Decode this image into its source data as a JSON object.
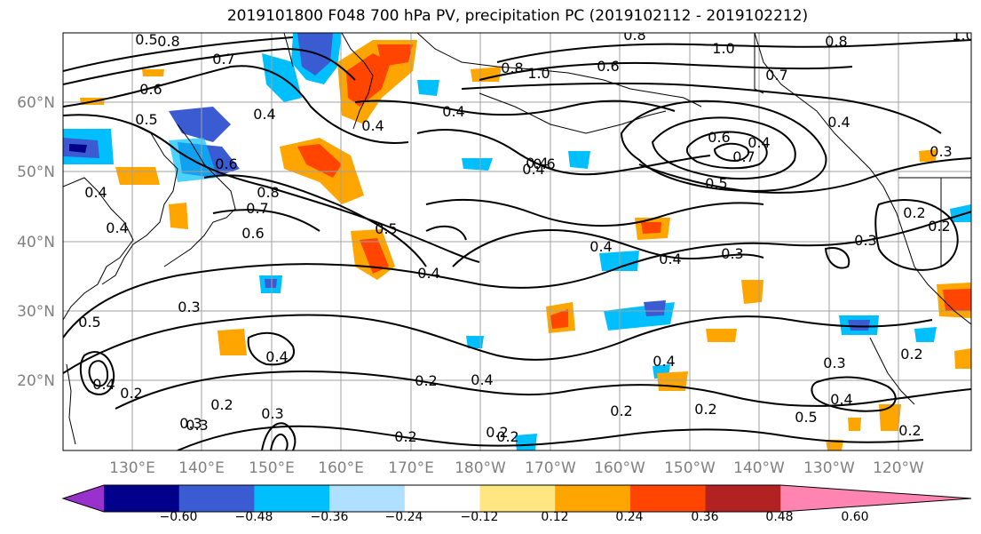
{
  "title": "2019101800 F048 700 hPa PV, precipitation PC (2019102112 - 2019102212)",
  "lat_labels": [
    "60°N",
    "50°N",
    "40°N",
    "30°N",
    "20°N"
  ],
  "lon_labels": [
    "130°E",
    "140°E",
    "150°E",
    "160°E",
    "170°E",
    "180°W",
    "170°W",
    "160°W",
    "150°W",
    "140°W",
    "130°W",
    "120°W"
  ],
  "colorbar": {
    "ticks": [
      "−0.60",
      "−0.48",
      "−0.36",
      "−0.24",
      "−0.12",
      "0.12",
      "0.24",
      "0.36",
      "0.48",
      "0.60"
    ],
    "colors": [
      "#9932cc",
      "#00008b",
      "#3a5bd1",
      "#00bfff",
      "#b0e0ff",
      "#ffffff",
      "#ffe680",
      "#ffa500",
      "#ff4500",
      "#b22222",
      "#ff85b0"
    ]
  },
  "contour_labels": [
    "0.8",
    "0.7",
    "0.6",
    "0.5",
    "0.4",
    "0.6",
    "0.7",
    "0.8",
    "0.6",
    "0.4",
    "0.4",
    "0.5",
    "0.4",
    "0.4",
    "0.4",
    "0.3",
    "0.3",
    "0.5",
    "0.4",
    "0.2",
    "0.3",
    "0.2",
    "0.3",
    "0.4",
    "0.2",
    "0.2",
    "0.4",
    "0.2",
    "0.2",
    "0.4",
    "0.4",
    "0.2",
    "0.3",
    "0.4",
    "0.2",
    "1.0",
    "0.8",
    "0.6",
    "1.0",
    "0.8",
    "0.7",
    "0.6",
    "0.4",
    "0.3",
    "0.5",
    "0.8",
    "1.0",
    "0.7",
    "0.4",
    "0.6",
    "0.5",
    "0.4",
    "0.3",
    "0.2",
    "0.2",
    "0.5",
    "0.4",
    "0.3",
    "0.2",
    "0.2",
    "0.4"
  ],
  "colors": {
    "negative_fill": "#00bfff",
    "positive_fill": "#ffa500",
    "strong_positive": "#ff4500",
    "strong_negative": "#3a5bd1",
    "contour": "#000000",
    "grid": "#a0a0a0"
  }
}
